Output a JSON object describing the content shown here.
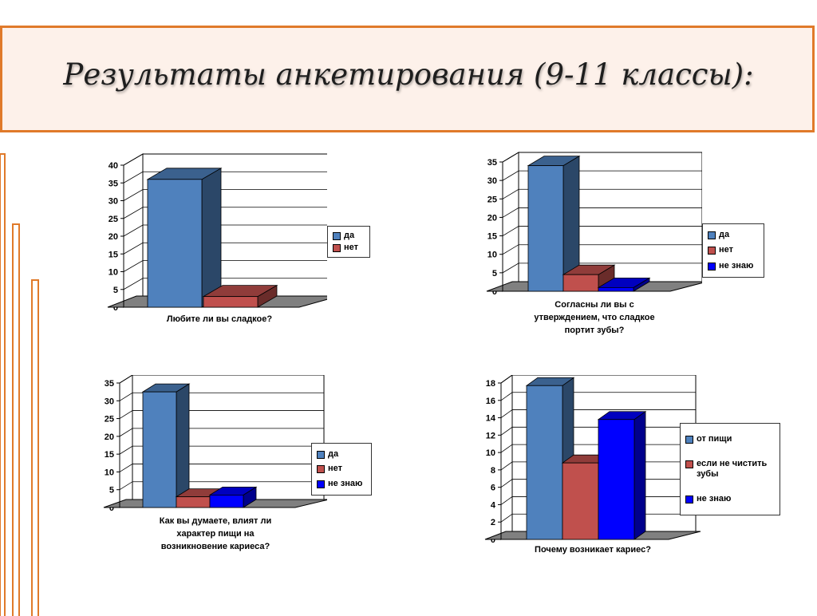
{
  "title": "Результаты анкетирования (9-11 классы):",
  "colors": {
    "accent": "#e07a2a",
    "yes": "#4f81bd",
    "no": "#c0504d",
    "dontknow": "#0000ff"
  },
  "chart_data": [
    {
      "type": "bar",
      "categories": [
        "Любите ли вы сладкое?"
      ],
      "series": [
        {
          "name": "да",
          "values": [
            36
          ]
        },
        {
          "name": "нет",
          "values": [
            3
          ]
        }
      ],
      "ylim": [
        0,
        40
      ],
      "yticks": [
        0,
        5,
        10,
        15,
        20,
        25,
        30,
        35,
        40
      ],
      "legend": "right",
      "grid": true
    },
    {
      "type": "bar",
      "categories": [
        "Согласны ли вы с утверждением, что сладкое портит зубы?"
      ],
      "series": [
        {
          "name": "да",
          "values": [
            34
          ]
        },
        {
          "name": "нет",
          "values": [
            4.5
          ]
        },
        {
          "name": "не знаю",
          "values": [
            1
          ]
        }
      ],
      "ylim": [
        0,
        35
      ],
      "yticks": [
        0,
        5,
        10,
        15,
        20,
        25,
        30,
        35
      ],
      "legend": "right",
      "grid": true
    },
    {
      "type": "bar",
      "categories": [
        "Как вы думаете, влият ли характер пищи на возникновение кариеса?"
      ],
      "series": [
        {
          "name": "да",
          "values": [
            32.5
          ]
        },
        {
          "name": "нет",
          "values": [
            3
          ]
        },
        {
          "name": "не знаю",
          "values": [
            3.5
          ]
        }
      ],
      "ylim": [
        0,
        35
      ],
      "yticks": [
        0,
        5,
        10,
        15,
        20,
        25,
        30,
        35
      ],
      "legend": "right",
      "grid": true
    },
    {
      "type": "bar",
      "categories": [
        "Почему возникает кариес?"
      ],
      "series": [
        {
          "name": "от пищи",
          "values": [
            17.7
          ]
        },
        {
          "name": "если не чистить зубы",
          "values": [
            8.8
          ]
        },
        {
          "name": "не знаю",
          "values": [
            13.8
          ]
        }
      ],
      "ylim": [
        0,
        18
      ],
      "yticks": [
        0,
        2,
        4,
        6,
        8,
        10,
        12,
        14,
        16,
        18
      ],
      "legend": "right",
      "grid": true
    }
  ]
}
